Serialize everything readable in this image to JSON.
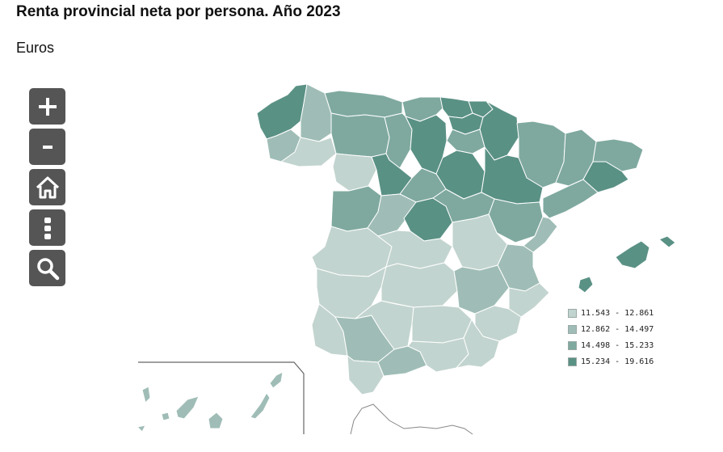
{
  "title": "Renta provincial neta por persona. Año 2023",
  "subtitle": "Euros",
  "toolbar": {
    "buttons": [
      {
        "name": "zoom-in-button",
        "icon": "plus-icon"
      },
      {
        "name": "zoom-out-button",
        "icon": "minus-icon"
      },
      {
        "name": "home-button",
        "icon": "home-icon"
      },
      {
        "name": "menu-button",
        "icon": "vertical-dots-icon"
      },
      {
        "name": "search-button",
        "icon": "magnifier-icon"
      }
    ]
  },
  "colors": {
    "class1": "#c2d4cf",
    "class2": "#9fbdb6",
    "class3": "#7fa99f",
    "class4": "#5a9185",
    "border": "#ffffff",
    "outline": "#7a8a86"
  },
  "legend": {
    "items": [
      {
        "label": "11.543 - 12.861",
        "color": "#c2d4cf"
      },
      {
        "label": "12.862 - 14.497",
        "color": "#9fbdb6"
      },
      {
        "label": "14.498 - 15.233",
        "color": "#7fa99f"
      },
      {
        "label": "15.234 - 19.616",
        "color": "#5a9185"
      }
    ]
  }
}
